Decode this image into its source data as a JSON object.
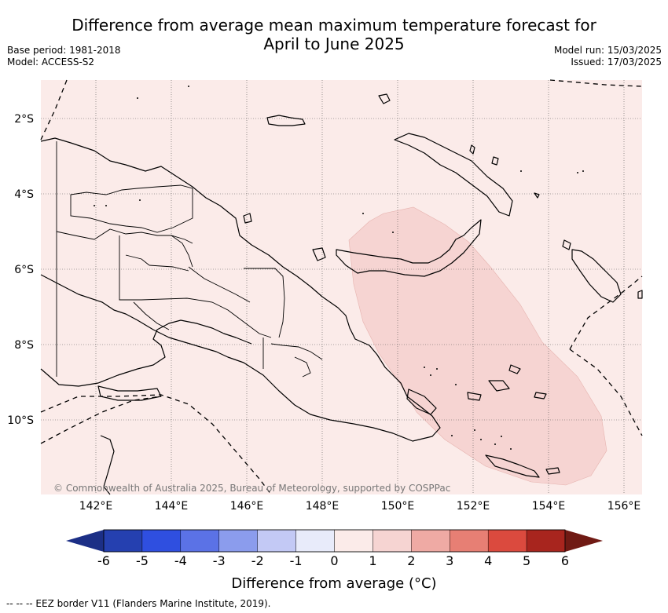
{
  "header": {
    "title_line1": "Difference from average mean maximum temperature forecast for",
    "title_line2": "April to June 2025",
    "base_period": "Base period: 1981-2018",
    "model": "Model: ACCESS-S2",
    "model_run": "Model run: 15/03/2025",
    "issued": "Issued: 17/03/2025"
  },
  "map": {
    "region": "Papua New Guinea",
    "lon_ticks": [
      "142°E",
      "144°E",
      "146°E",
      "148°E",
      "150°E",
      "152°E",
      "154°E",
      "156°E"
    ],
    "lat_ticks": [
      "2°S",
      "4°S",
      "6°S",
      "8°S",
      "10°S"
    ],
    "credit": "© Commonwealth of Australia 2025, Bureau of Meteorology, supported by COSPPac",
    "background_category": "0 to 1",
    "highlight_category": "1 to 2",
    "highlight_area": "east of New Britain through Solomon Sea"
  },
  "colorbar": {
    "title": "Difference from average (°C)",
    "labels": [
      "-6",
      "-5",
      "-4",
      "-3",
      "-2",
      "-1",
      "0",
      "1",
      "2",
      "3",
      "4",
      "5",
      "6"
    ],
    "colors": [
      "#2540b0",
      "#2f4fe0",
      "#5b72e6",
      "#8b9ced",
      "#c3c9f5",
      "#e8ebfa",
      "#fbebe9",
      "#f6d4d2",
      "#efaaa4",
      "#e77f74",
      "#db4a3e",
      "#a8251e"
    ],
    "under_color": "#1c2f86",
    "over_color": "#701a14"
  },
  "footnote": "-- -- -- EEZ border V11 (Flanders Marine Institute, 2019)."
}
